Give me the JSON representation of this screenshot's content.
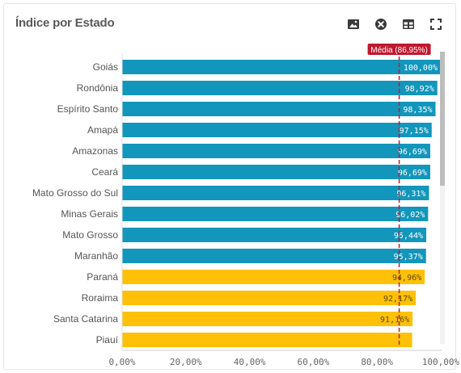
{
  "header": {
    "title": "Índice por Estado",
    "icons": [
      "image-export-icon",
      "close-circle-icon",
      "table-view-icon",
      "fullscreen-icon"
    ]
  },
  "colors": {
    "above": "#1396bb",
    "below": "#ffc107",
    "average_line": "#c0182e",
    "average_badge": "#c0182e"
  },
  "chart_data": {
    "type": "bar",
    "orientation": "horizontal",
    "title": "Índice por Estado",
    "xlim": [
      0,
      100
    ],
    "x_ticks": [
      "0,00%",
      "20,00%",
      "40,00%",
      "60,00%",
      "80,00%",
      "100,00%"
    ],
    "categories": [
      "Goiás",
      "Rondônia",
      "Espírito Santo",
      "Amapá",
      "Amazonas",
      "Ceará",
      "Mato Grosso do Sul",
      "Minas Gerais",
      "Mato Grosso",
      "Maranhão",
      "Paraná",
      "Roraima",
      "Santa Catarina",
      "Piauí"
    ],
    "values": [
      100.0,
      98.92,
      98.35,
      97.15,
      96.69,
      96.69,
      96.31,
      96.02,
      95.44,
      95.37,
      94.96,
      92.17,
      91.16,
      91.0
    ],
    "value_labels": [
      "100,00%",
      "98,92%",
      "98,35%",
      "97,15%",
      "96,69%",
      "96,69%",
      "96,31%",
      "96,02%",
      "95,44%",
      "95,37%",
      "94,96%",
      "92,17%",
      "91,16%",
      ""
    ],
    "average": {
      "value": 86.95,
      "label": "Média (86,95%)"
    },
    "grid": false,
    "legend": "none"
  }
}
